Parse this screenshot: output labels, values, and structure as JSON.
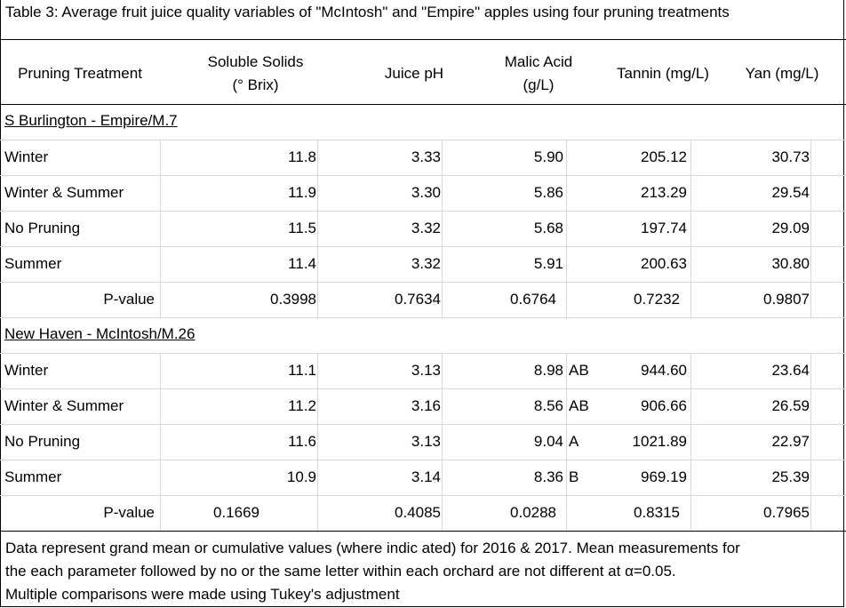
{
  "caption": "Table 3: Average fruit juice quality variables of \"McIntosh\" and \"Empire\" apples using four pruning treatments",
  "headers": {
    "treatment": "Pruning Treatment",
    "solids_line1": "Soluble Solids",
    "solids_line2": "(° Brix)",
    "ph": "Juice pH",
    "malic_line1": "Malic Acid",
    "malic_line2": "(g/L)",
    "tannin": "Tannin (mg/L)",
    "yan": "Yan (mg/L)"
  },
  "sections": [
    {
      "title": "S Burlington - Empire/M.7",
      "rows": [
        {
          "treatment": "Winter",
          "solids": "11.8",
          "ph": "3.33",
          "malic": "5.90",
          "letter": "",
          "tannin": "205.12",
          "yan": "30.73"
        },
        {
          "treatment": "Winter & Summer",
          "solids": "11.9",
          "ph": "3.30",
          "malic": "5.86",
          "letter": "",
          "tannin": "213.29",
          "yan": "29.54"
        },
        {
          "treatment": "No Pruning",
          "solids": "11.5",
          "ph": "3.32",
          "malic": "5.68",
          "letter": "",
          "tannin": "197.74",
          "yan": "29.09"
        },
        {
          "treatment": "Summer",
          "solids": "11.4",
          "ph": "3.32",
          "malic": "5.91",
          "letter": "",
          "tannin": "200.63",
          "yan": "30.80"
        }
      ],
      "pvalue": {
        "label": "P-value",
        "solids": "0.3998",
        "ph": "0.7634",
        "malic": "0.6764",
        "tannin": "0.7232",
        "yan": "0.9807"
      }
    },
    {
      "title": "New Haven - McIntosh/M.26",
      "rows": [
        {
          "treatment": "Winter",
          "solids": "11.1",
          "ph": "3.13",
          "malic": "8.98",
          "letter": "AB",
          "tannin": "944.60",
          "yan": "23.64"
        },
        {
          "treatment": "Winter & Summer",
          "solids": "11.2",
          "ph": "3.16",
          "malic": "8.56",
          "letter": "AB",
          "tannin": "906.66",
          "yan": "26.59"
        },
        {
          "treatment": "No Pruning",
          "solids": "11.6",
          "ph": "3.13",
          "malic": "9.04",
          "letter": "A",
          "tannin": "1021.89",
          "yan": "22.97"
        },
        {
          "treatment": "Summer",
          "solids": "10.9",
          "ph": "3.14",
          "malic": "8.36",
          "letter": "B",
          "tannin": "969.19",
          "yan": "25.39"
        }
      ],
      "pvalue": {
        "label": "P-value",
        "solids": "0.1669",
        "ph": "0.4085",
        "malic": "0.0288",
        "tannin": "0.8315",
        "yan": "0.7965"
      }
    }
  ],
  "footnote": {
    "line1": "Data represent grand mean or cumulative values (where indic ated)  for 2016 & 2017. Mean measurements for",
    "line2": "the each parameter  followed by no or the same letter within each orchard are not different at α=0.05.",
    "line3": "Multiple comparisons were made using Tukey's adjustment"
  }
}
